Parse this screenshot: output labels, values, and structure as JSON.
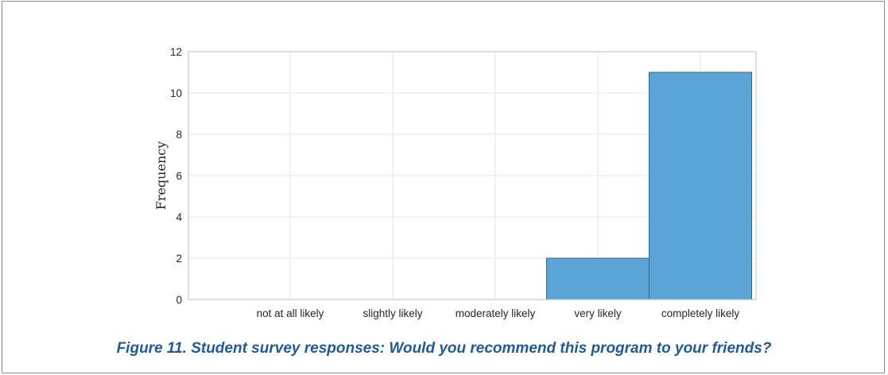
{
  "chart_data": {
    "type": "bar",
    "categories": [
      "not at all likely",
      "slightly likely",
      "moderately likely",
      "very likely",
      "completely likely"
    ],
    "values": [
      0,
      0,
      0,
      2,
      11
    ],
    "ylabel": "Frequency",
    "xlabel": "",
    "ylim": [
      0,
      12
    ],
    "yticks": [
      0,
      2,
      4,
      6,
      8,
      10,
      12
    ],
    "grid": true,
    "bar_color": "#5aa5d6",
    "bar_edge_color": "#2c6a94"
  },
  "caption": "Figure 11. Student survey responses: Would you recommend this program to your friends?"
}
